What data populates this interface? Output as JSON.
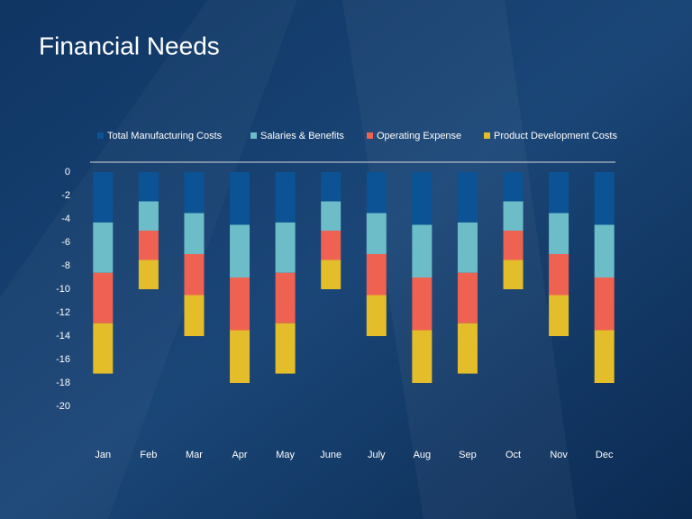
{
  "chart_data": {
    "type": "stacked_bar",
    "title": "Financial Needs",
    "categories": [
      "Jan",
      "Feb",
      "Mar",
      "Apr",
      "May",
      "June",
      "July",
      "Aug",
      "Sep",
      "Oct",
      "Nov",
      "Dec"
    ],
    "series": [
      {
        "name": "Total Manufacturing Costs",
        "color": "#0b5394",
        "values": [
          -4.3,
          -2.5,
          -3.5,
          -4.5,
          -4.3,
          -2.5,
          -3.5,
          -4.5,
          -4.3,
          -2.5,
          -3.5,
          -4.5
        ]
      },
      {
        "name": "Salaries & Benefits",
        "color": "#6dbdc8",
        "values": [
          -4.3,
          -2.5,
          -3.5,
          -4.5,
          -4.3,
          -2.5,
          -3.5,
          -4.5,
          -4.3,
          -2.5,
          -3.5,
          -4.5
        ]
      },
      {
        "name": "Operating Expense",
        "color": "#ef6150",
        "values": [
          -4.3,
          -2.5,
          -3.5,
          -4.5,
          -4.3,
          -2.5,
          -3.5,
          -4.5,
          -4.3,
          -2.5,
          -3.5,
          -4.5
        ]
      },
      {
        "name": "Product Development Costs",
        "color": "#e4bd2b",
        "values": [
          -4.3,
          -2.5,
          -3.5,
          -4.5,
          -4.3,
          -2.5,
          -3.5,
          -4.5,
          -4.3,
          -2.5,
          -3.5,
          -4.5
        ]
      }
    ],
    "ylim": [
      -20,
      0
    ],
    "yticks": [
      0,
      -2,
      -4,
      -6,
      -8,
      -10,
      -12,
      -14,
      -16,
      -18,
      -20
    ],
    "legend": "top"
  }
}
